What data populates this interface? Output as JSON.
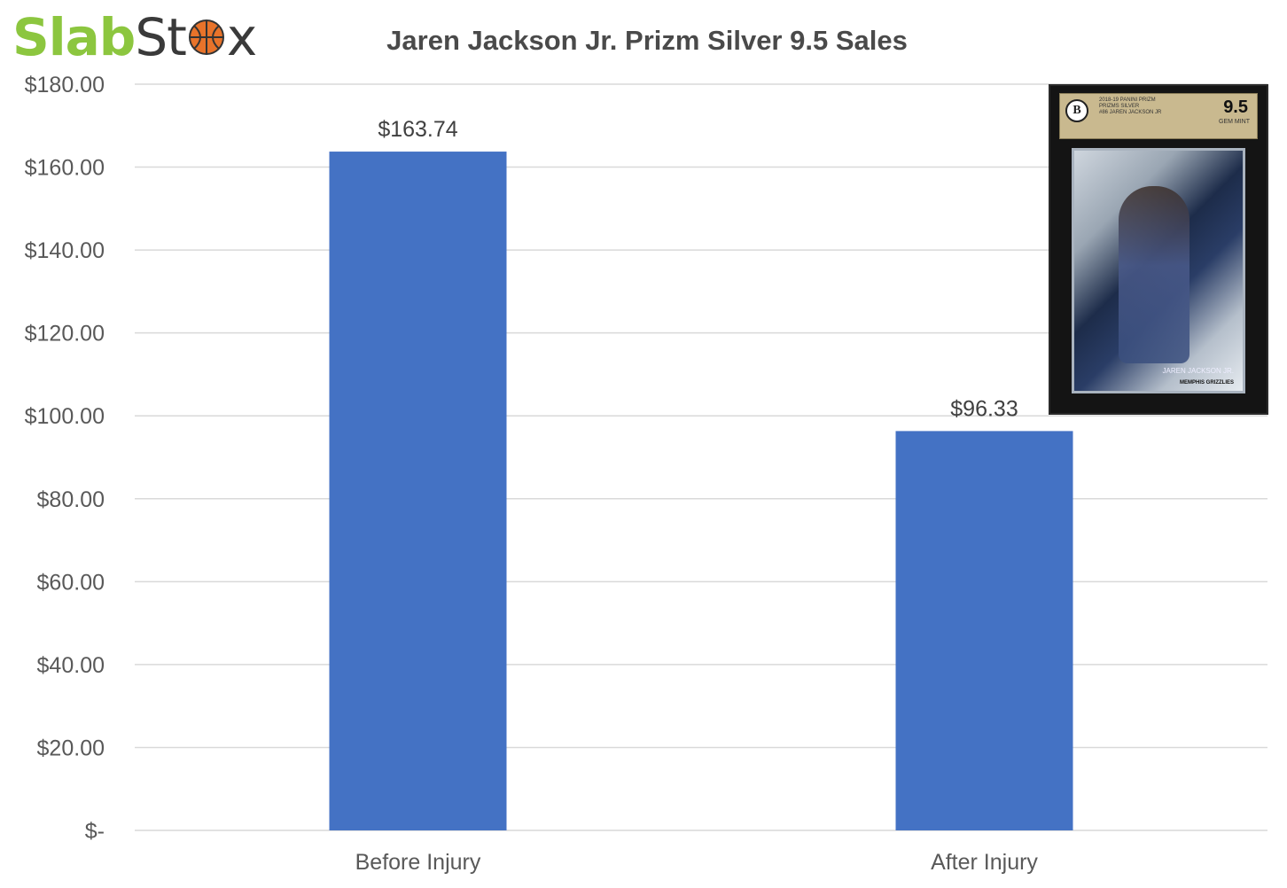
{
  "logo": {
    "part1": "Slab",
    "part2": "St",
    "part3": "x"
  },
  "card_image": {
    "grade": "9.5",
    "grade_word": "GEM MINT",
    "brand": "BECKETT",
    "label_lines": [
      "2018-19 PANINI PRIZM",
      "PRIZMS SILVER",
      "#86 JAREN JACKSON JR"
    ],
    "player": "JAREN JACKSON JR.",
    "team": "MEMPHIS GRIZZLIES"
  },
  "chart_data": {
    "type": "bar",
    "title": "Jaren Jackson Jr. Prizm Silver 9.5 Sales",
    "categories": [
      "Before Injury",
      "After Injury"
    ],
    "values": [
      163.74,
      96.33
    ],
    "value_labels": [
      "$163.74",
      "$96.33"
    ],
    "ylim": [
      0,
      180
    ],
    "yticks": [
      0,
      20,
      40,
      60,
      80,
      100,
      120,
      140,
      160,
      180
    ],
    "ytick_labels": [
      "$-",
      "$20.00",
      "$40.00",
      "$60.00",
      "$80.00",
      "$100.00",
      "$120.00",
      "$140.00",
      "$160.00",
      "$180.00"
    ],
    "xlabel": "",
    "ylabel": "",
    "grid": true,
    "legend": "none",
    "colors": {
      "bar": "#4472c4",
      "grid": "#d9d9d9",
      "text": "#595959"
    }
  }
}
